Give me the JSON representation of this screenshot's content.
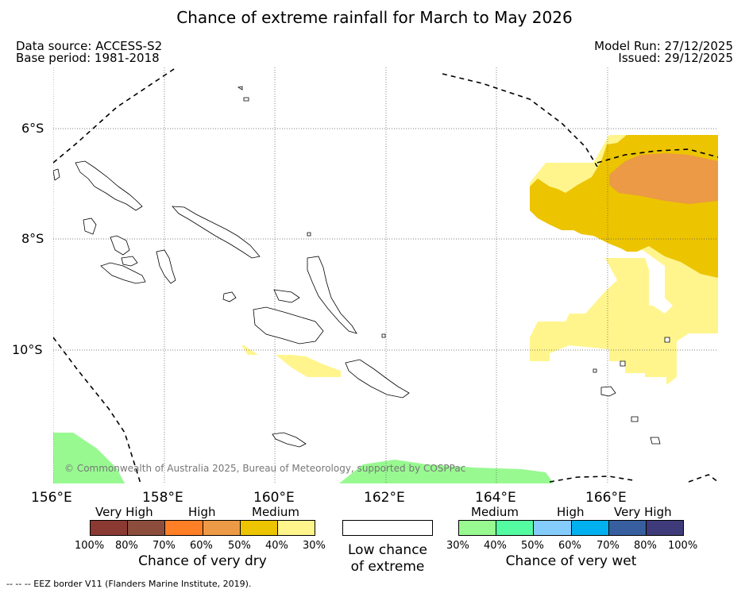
{
  "title": "Chance of extreme rainfall for March to May 2026",
  "data_source": "Data source: ACCESS-S2",
  "base_period": "Base period: 1981-2018",
  "model_run": "Model Run: 27/12/2025",
  "issued": "Issued: 29/12/2025",
  "copyright": "© Commonwealth of Australia 2025, Bureau of Meteorology, supported by COSPPac",
  "lat_labels": [
    "6°S",
    "8°S",
    "10°S"
  ],
  "lon_labels": [
    "156°E",
    "158°E",
    "160°E",
    "162°E",
    "164°E",
    "166°E"
  ],
  "dry_legend": {
    "categories": [
      "Very High",
      "High",
      "Medium"
    ],
    "colors": [
      "#8b3a33",
      "#8d4d3c",
      "#ff7f27",
      "#ec9a45",
      "#ecc400",
      "#fff58c"
    ],
    "ticks": [
      "100%",
      "80%",
      "70%",
      "60%",
      "50%",
      "40%",
      "30%"
    ],
    "caption": "Chance of very dry"
  },
  "low_legend": {
    "color": "#ffffff",
    "caption_line1": "Low chance",
    "caption_line2": "of extreme"
  },
  "wet_legend": {
    "categories": [
      "Medium",
      "High",
      "Very High"
    ],
    "colors": [
      "#98f991",
      "#55fba0",
      "#84ccfb",
      "#00b0ef",
      "#375f9f",
      "#3f3a79"
    ],
    "ticks": [
      "30%",
      "40%",
      "50%",
      "60%",
      "70%",
      "80%",
      "100%"
    ],
    "caption": "Chance of very wet"
  },
  "footnote": "--  --  -- EEZ border V11 (Flanders Marine Institute, 2019)."
}
